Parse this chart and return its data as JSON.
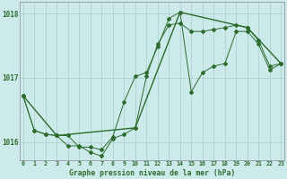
{
  "title": "Graphe pression niveau de la mer (hPa)",
  "background_color": "#cceaea",
  "grid_color": "#aacccc",
  "line_color": "#2d6b2d",
  "x_min": -0.3,
  "x_max": 23.3,
  "y_min": 1015.72,
  "y_max": 1018.18,
  "y_ticks": [
    1016,
    1017,
    1018
  ],
  "x_ticks": [
    0,
    1,
    2,
    3,
    4,
    5,
    6,
    7,
    8,
    9,
    10,
    11,
    12,
    13,
    14,
    15,
    16,
    17,
    18,
    19,
    20,
    21,
    22,
    23
  ],
  "series1_x": [
    0,
    1,
    2,
    3,
    4,
    5,
    6,
    7,
    8,
    9,
    10,
    11,
    12,
    13,
    14,
    15,
    16,
    17,
    18,
    19,
    20,
    21,
    22,
    23
  ],
  "series1_y": [
    1016.72,
    1016.18,
    1016.12,
    1016.1,
    1015.94,
    1015.94,
    1015.84,
    1015.78,
    1016.05,
    1016.12,
    1016.22,
    1017.02,
    1017.52,
    1017.82,
    1017.85,
    1017.72,
    1017.72,
    1017.75,
    1017.78,
    1017.82,
    1017.78,
    1017.58,
    1017.18,
    1017.22
  ],
  "series2_x": [
    0,
    1,
    2,
    3,
    4,
    5,
    6,
    7,
    8,
    9,
    10,
    11,
    12,
    13,
    14,
    15,
    16,
    17,
    18,
    19,
    20,
    21,
    22,
    23
  ],
  "series2_y": [
    1016.72,
    1016.18,
    1016.12,
    1016.1,
    1016.1,
    1015.92,
    1015.92,
    1015.88,
    1016.08,
    1016.62,
    1017.02,
    1017.08,
    1017.48,
    1017.92,
    1018.02,
    1016.78,
    1017.08,
    1017.18,
    1017.22,
    1017.72,
    1017.72,
    1017.52,
    1017.12,
    1017.22
  ],
  "series3_x": [
    0,
    3,
    10,
    14,
    20,
    23
  ],
  "series3_y": [
    1016.72,
    1016.1,
    1016.22,
    1018.02,
    1017.78,
    1017.22
  ],
  "marker": "D",
  "marker_size": 2.0,
  "lw1": 0.7,
  "lw2": 0.7,
  "lw3": 1.0
}
